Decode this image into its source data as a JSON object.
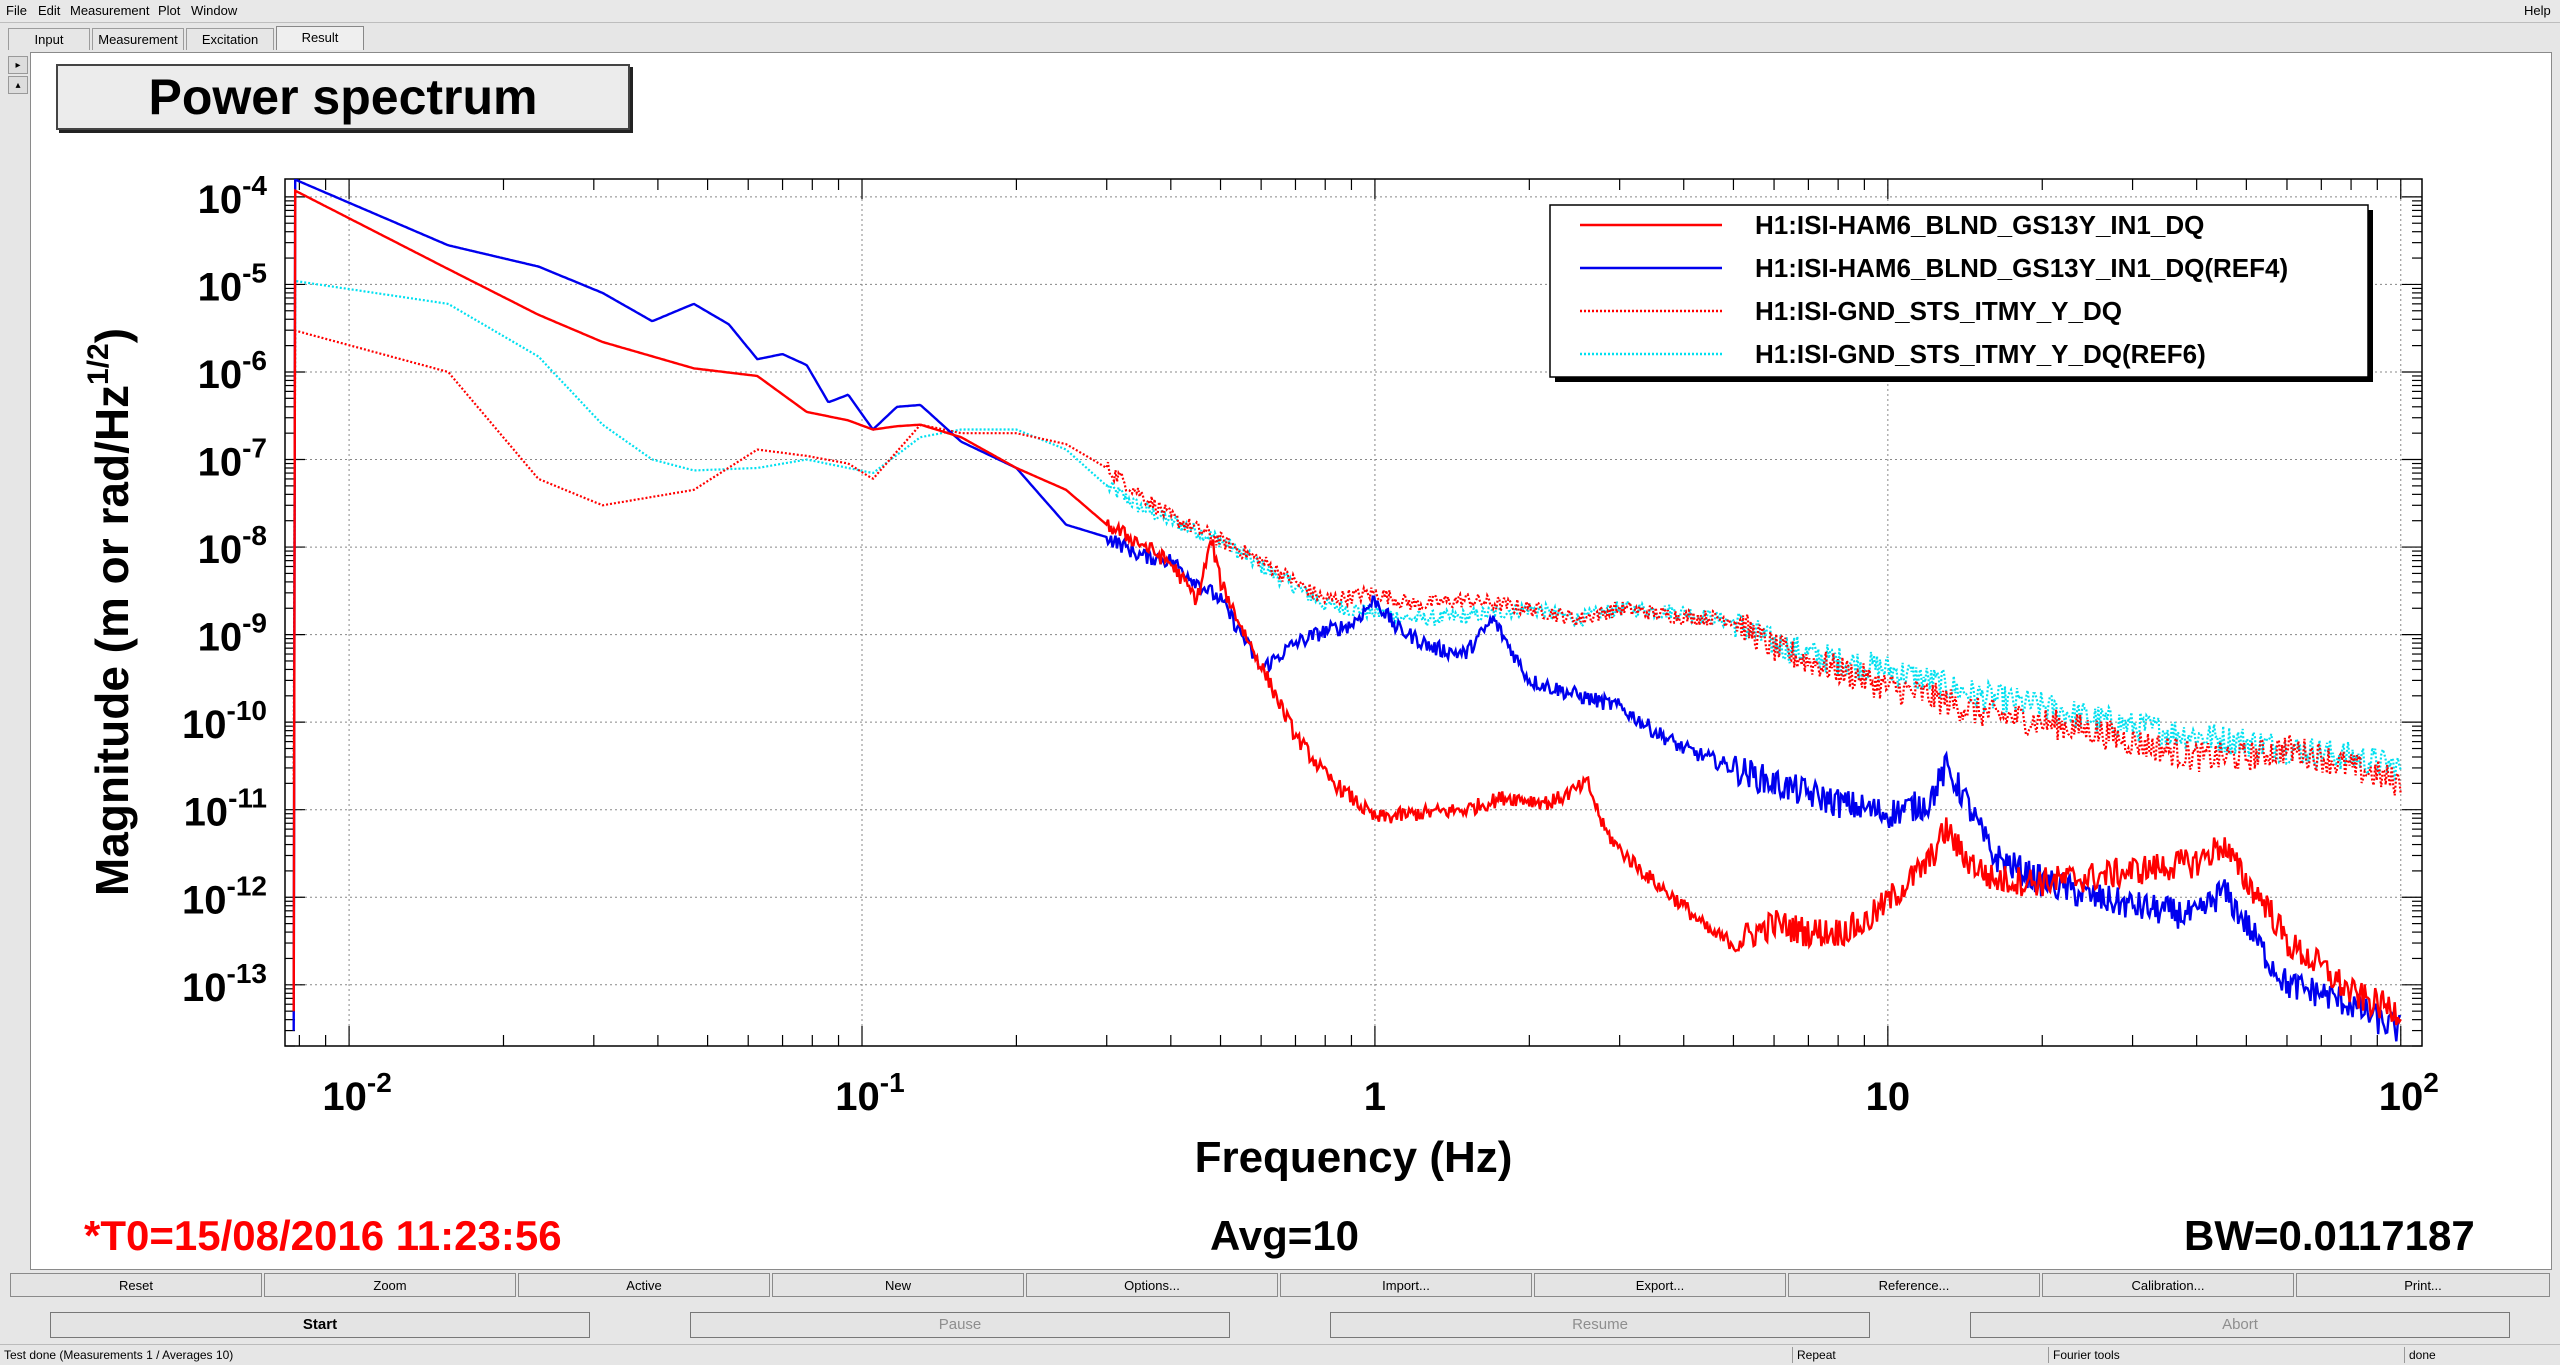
{
  "menu": {
    "items": [
      "File",
      "Edit",
      "Measurement",
      "Plot",
      "Window"
    ],
    "help": "Help"
  },
  "tabs": [
    "Input",
    "Measurement",
    "Excitation",
    "Result"
  ],
  "active_tab": "Result",
  "plot_title": "Power spectrum",
  "info": {
    "t0": "*T0=15/08/2016 11:23:56",
    "avg": "Avg=10",
    "bw": "BW=0.0117187"
  },
  "toolbar_row1": [
    "Reset",
    "Zoom",
    "Active",
    "New",
    "Options...",
    "Import...",
    "Export...",
    "Reference...",
    "Calibration...",
    "Print..."
  ],
  "toolbar_row2": [
    {
      "label": "Start",
      "enabled": true
    },
    {
      "label": "Pause",
      "enabled": false
    },
    {
      "label": "Resume",
      "enabled": false
    },
    {
      "label": "Abort",
      "enabled": false
    }
  ],
  "status": {
    "message": "Test done (Measurements 1 / Averages 10)",
    "mode": "Repeat",
    "tools": "Fourier tools",
    "state": "done"
  },
  "colors": {
    "red": "#ff0000",
    "blue": "#0000ee",
    "cyan": "#00e0f0",
    "t0_text": "#ff0000"
  },
  "chart_data": {
    "type": "line",
    "title": "Power spectrum",
    "xlabel": "Frequency (Hz)",
    "ylabel": "Magnitude (m or rad/Hz",
    "ylabel_sup": "1/2",
    "ylabel_close": ")",
    "xscale": "log",
    "yscale": "log",
    "xlim": [
      0.0075,
      110
    ],
    "ylim": [
      2e-14,
      0.00016
    ],
    "x_ticks": [
      {
        "value": 0.01,
        "base": "10",
        "exp": "-2"
      },
      {
        "value": 0.1,
        "base": "10",
        "exp": "-1"
      },
      {
        "value": 1,
        "base": "1",
        "exp": ""
      },
      {
        "value": 10,
        "base": "10",
        "exp": ""
      },
      {
        "value": 100,
        "base": "10",
        "exp": "2"
      }
    ],
    "y_ticks": [
      {
        "value": 0.0001,
        "base": "10",
        "exp": "-4"
      },
      {
        "value": 1e-05,
        "base": "10",
        "exp": "-5"
      },
      {
        "value": 1e-06,
        "base": "10",
        "exp": "-6"
      },
      {
        "value": 1e-07,
        "base": "10",
        "exp": "-7"
      },
      {
        "value": 1e-08,
        "base": "10",
        "exp": "-8"
      },
      {
        "value": 1e-09,
        "base": "10",
        "exp": "-9"
      },
      {
        "value": 1e-10,
        "base": "10",
        "exp": "-10"
      },
      {
        "value": 1e-11,
        "base": "10",
        "exp": "-11"
      },
      {
        "value": 1e-12,
        "base": "10",
        "exp": "-12"
      },
      {
        "value": 1e-13,
        "base": "10",
        "exp": "-13"
      }
    ],
    "grid": true,
    "legend_position": "top-right",
    "series": [
      {
        "name": "H1:ISI-HAM6_BLND_GS13Y_IN1_DQ",
        "color": "#ff0000",
        "style": "solid",
        "points": [
          [
            0.0078,
            0.00012
          ],
          [
            0.0156,
            1.5e-05
          ],
          [
            0.0234,
            4.5e-06
          ],
          [
            0.0312,
            2.2e-06
          ],
          [
            0.047,
            1.1e-06
          ],
          [
            0.0625,
            9e-07
          ],
          [
            0.078,
            3.5e-07
          ],
          [
            0.094,
            2.8e-07
          ],
          [
            0.105,
            2.2e-07
          ],
          [
            0.117,
            2.4e-07
          ],
          [
            0.13,
            2.5e-07
          ],
          [
            0.156,
            1.8e-07
          ],
          [
            0.2,
            8e-08
          ],
          [
            0.25,
            4.5e-08
          ],
          [
            0.3,
            1.8e-08
          ],
          [
            0.35,
            1.1e-08
          ],
          [
            0.4,
            6.5e-09
          ],
          [
            0.45,
            2.5e-09
          ],
          [
            0.48,
            1.2e-08
          ],
          [
            0.5,
            4e-09
          ],
          [
            0.55,
            1.2e-09
          ],
          [
            0.62,
            3e-10
          ],
          [
            0.7,
            7e-11
          ],
          [
            0.8,
            2.5e-11
          ],
          [
            1.0,
            8e-12
          ],
          [
            1.2,
            9e-12
          ],
          [
            1.5,
            1e-11
          ],
          [
            1.8,
            1.4e-11
          ],
          [
            2.2,
            1.2e-11
          ],
          [
            2.6,
            2e-11
          ],
          [
            2.8,
            6e-12
          ],
          [
            3.0,
            3.5e-12
          ],
          [
            3.5,
            1.5e-12
          ],
          [
            4.0,
            8e-13
          ],
          [
            4.5,
            4e-13
          ],
          [
            5.0,
            3e-13
          ],
          [
            6.0,
            5e-13
          ],
          [
            7.0,
            4e-13
          ],
          [
            8.0,
            4e-13
          ],
          [
            9.0,
            5e-13
          ],
          [
            10.0,
            9e-13
          ],
          [
            12.0,
            2.5e-12
          ],
          [
            13.0,
            6e-12
          ],
          [
            14.0,
            3e-12
          ],
          [
            16.0,
            1.6e-12
          ],
          [
            20.0,
            1.5e-12
          ],
          [
            25.0,
            1.7e-12
          ],
          [
            30.0,
            2e-12
          ],
          [
            40.0,
            2.5e-12
          ],
          [
            45.0,
            4e-12
          ],
          [
            50.0,
            1.5e-12
          ],
          [
            55.0,
            8e-13
          ],
          [
            60.0,
            3e-13
          ],
          [
            70.0,
            1.6e-13
          ],
          [
            80.0,
            8e-14
          ],
          [
            90.0,
            6e-14
          ],
          [
            100.0,
            5e-14
          ]
        ]
      },
      {
        "name": "H1:ISI-HAM6_BLND_GS13Y_IN1_DQ(REF4)",
        "color": "#0000ee",
        "style": "solid",
        "points": [
          [
            0.0078,
            0.00016
          ],
          [
            0.0156,
            2.8e-05
          ],
          [
            0.0234,
            1.6e-05
          ],
          [
            0.0312,
            8e-06
          ],
          [
            0.039,
            3.8e-06
          ],
          [
            0.047,
            6e-06
          ],
          [
            0.055,
            3.5e-06
          ],
          [
            0.0625,
            1.4e-06
          ],
          [
            0.07,
            1.6e-06
          ],
          [
            0.078,
            1.2e-06
          ],
          [
            0.086,
            4.5e-07
          ],
          [
            0.094,
            5.5e-07
          ],
          [
            0.105,
            2.2e-07
          ],
          [
            0.117,
            4e-07
          ],
          [
            0.13,
            4.2e-07
          ],
          [
            0.156,
            1.6e-07
          ],
          [
            0.2,
            8e-08
          ],
          [
            0.25,
            1.8e-08
          ],
          [
            0.3,
            1.3e-08
          ],
          [
            0.35,
            8e-09
          ],
          [
            0.4,
            7e-09
          ],
          [
            0.45,
            4e-09
          ],
          [
            0.5,
            2.5e-09
          ],
          [
            0.55,
            1e-09
          ],
          [
            0.6,
            4e-10
          ],
          [
            0.7,
            8e-10
          ],
          [
            0.8,
            1.1e-09
          ],
          [
            0.9,
            1.3e-09
          ],
          [
            1.0,
            2.5e-09
          ],
          [
            1.1,
            1.2e-09
          ],
          [
            1.3,
            7e-10
          ],
          [
            1.5,
            6e-10
          ],
          [
            1.7,
            1.5e-09
          ],
          [
            2.0,
            3e-10
          ],
          [
            2.5,
            2e-10
          ],
          [
            3.0,
            1.5e-10
          ],
          [
            3.5,
            8e-11
          ],
          [
            4.0,
            5e-11
          ],
          [
            5.0,
            3e-11
          ],
          [
            6.0,
            2e-11
          ],
          [
            8.0,
            1.2e-11
          ],
          [
            10.0,
            9e-12
          ],
          [
            12.0,
            1.2e-11
          ],
          [
            13.0,
            3e-11
          ],
          [
            14.0,
            1.5e-11
          ],
          [
            16.0,
            3e-12
          ],
          [
            20.0,
            1.5e-12
          ],
          [
            25.0,
            1e-12
          ],
          [
            30.0,
            8e-13
          ],
          [
            40.0,
            6e-13
          ],
          [
            45.0,
            1.2e-12
          ],
          [
            50.0,
            5e-13
          ],
          [
            55.0,
            2e-13
          ],
          [
            60.0,
            1e-13
          ],
          [
            70.0,
            8e-14
          ],
          [
            80.0,
            6e-14
          ],
          [
            90.0,
            4e-14
          ],
          [
            100.0,
            3e-14
          ]
        ]
      },
      {
        "name": "H1:ISI-GND_STS_ITMY_Y_DQ",
        "color": "#ff0000",
        "style": "dotted",
        "points": [
          [
            0.0078,
            3e-06
          ],
          [
            0.0156,
            1e-06
          ],
          [
            0.0234,
            6e-08
          ],
          [
            0.0312,
            3e-08
          ],
          [
            0.047,
            4.5e-08
          ],
          [
            0.0625,
            1.3e-07
          ],
          [
            0.078,
            1.1e-07
          ],
          [
            0.094,
            9e-08
          ],
          [
            0.105,
            6e-08
          ],
          [
            0.13,
            2.5e-07
          ],
          [
            0.156,
            2e-07
          ],
          [
            0.2,
            2e-07
          ],
          [
            0.25,
            1.5e-07
          ],
          [
            0.3,
            8e-08
          ],
          [
            0.35,
            4e-08
          ],
          [
            0.4,
            2.2e-08
          ],
          [
            0.5,
            1.2e-08
          ],
          [
            0.6,
            7e-09
          ],
          [
            0.7,
            4e-09
          ],
          [
            0.8,
            2.5e-09
          ],
          [
            1.0,
            3e-09
          ],
          [
            1.2,
            2.2e-09
          ],
          [
            1.5,
            2.5e-09
          ],
          [
            2.0,
            2e-09
          ],
          [
            2.5,
            1.5e-09
          ],
          [
            3.0,
            2e-09
          ],
          [
            4.0,
            1.6e-09
          ],
          [
            5.0,
            1.5e-09
          ],
          [
            6.0,
            7e-10
          ],
          [
            7.0,
            5e-10
          ],
          [
            8.0,
            4e-10
          ],
          [
            10.0,
            2.5e-10
          ],
          [
            12.0,
            2e-10
          ],
          [
            15.0,
            1.3e-10
          ],
          [
            20.0,
            1e-10
          ],
          [
            25.0,
            8e-11
          ],
          [
            30.0,
            6e-11
          ],
          [
            40.0,
            4e-11
          ],
          [
            50.0,
            4e-11
          ],
          [
            60.0,
            5e-11
          ],
          [
            70.0,
            4e-11
          ],
          [
            80.0,
            3e-11
          ],
          [
            90.0,
            2.5e-11
          ],
          [
            100.0,
            2e-11
          ]
        ]
      },
      {
        "name": "H1:ISI-GND_STS_ITMY_Y_DQ(REF6)",
        "color": "#00e0f0",
        "style": "dotted",
        "points": [
          [
            0.0078,
            1.1e-05
          ],
          [
            0.0156,
            6e-06
          ],
          [
            0.0234,
            1.5e-06
          ],
          [
            0.0312,
            2.5e-07
          ],
          [
            0.039,
            1e-07
          ],
          [
            0.047,
            7.5e-08
          ],
          [
            0.0625,
            8e-08
          ],
          [
            0.078,
            1e-07
          ],
          [
            0.094,
            8e-08
          ],
          [
            0.105,
            7e-08
          ],
          [
            0.13,
            1.8e-07
          ],
          [
            0.156,
            2.2e-07
          ],
          [
            0.2,
            2.2e-07
          ],
          [
            0.25,
            1.3e-07
          ],
          [
            0.3,
            5e-08
          ],
          [
            0.35,
            2.8e-08
          ],
          [
            0.4,
            2e-08
          ],
          [
            0.5,
            1.2e-08
          ],
          [
            0.6,
            6e-09
          ],
          [
            0.7,
            3.5e-09
          ],
          [
            0.8,
            2.2e-09
          ],
          [
            1.0,
            1.8e-09
          ],
          [
            1.2,
            1.5e-09
          ],
          [
            1.5,
            1.6e-09
          ],
          [
            2.0,
            2e-09
          ],
          [
            2.5,
            1.5e-09
          ],
          [
            3.0,
            2e-09
          ],
          [
            4.0,
            1.8e-09
          ],
          [
            5.0,
            1.4e-09
          ],
          [
            6.0,
            8e-10
          ],
          [
            7.0,
            6e-10
          ],
          [
            8.0,
            5e-10
          ],
          [
            10.0,
            4e-10
          ],
          [
            12.0,
            3e-10
          ],
          [
            15.0,
            2e-10
          ],
          [
            20.0,
            1.5e-10
          ],
          [
            25.0,
            1.1e-10
          ],
          [
            30.0,
            9e-11
          ],
          [
            40.0,
            7e-11
          ],
          [
            50.0,
            6e-11
          ],
          [
            60.0,
            5e-11
          ],
          [
            70.0,
            4.5e-11
          ],
          [
            80.0,
            4e-11
          ],
          [
            90.0,
            3.5e-11
          ],
          [
            100.0,
            3e-11
          ]
        ]
      }
    ]
  }
}
